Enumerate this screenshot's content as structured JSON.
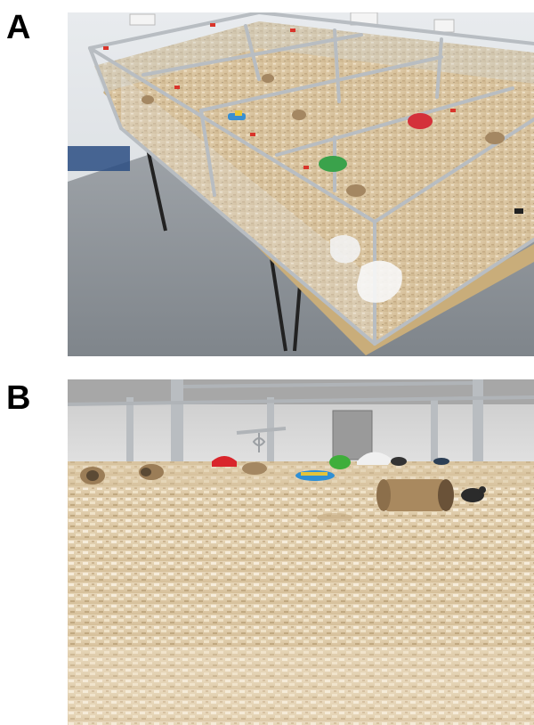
{
  "figure": {
    "panels": [
      {
        "id": "A",
        "label": "A"
      },
      {
        "id": "B",
        "label": "B"
      }
    ]
  }
}
